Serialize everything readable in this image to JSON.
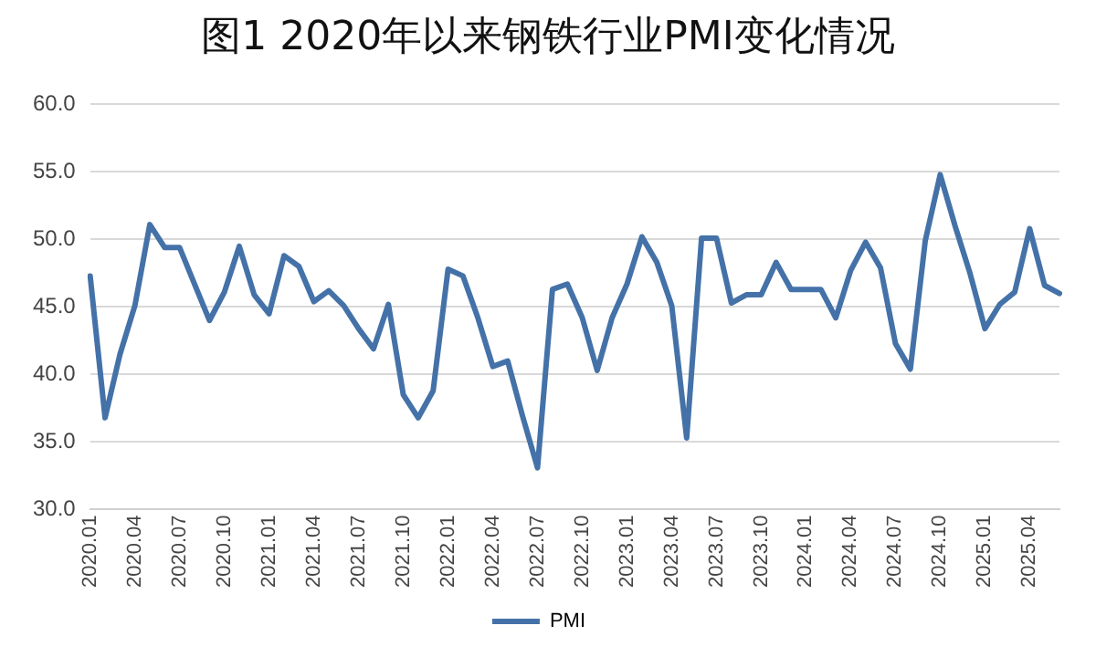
{
  "chart_data": {
    "type": "line",
    "title": "图1 2020年以来钢铁行业PMI变化情况",
    "categories": [
      "2020.01",
      null,
      null,
      "2020.04",
      null,
      null,
      "2020.07",
      null,
      null,
      "2020.10",
      null,
      null,
      "2021.01",
      null,
      null,
      "2021.04",
      null,
      null,
      "2021.07",
      null,
      null,
      "2021.10",
      null,
      null,
      "2022.01",
      null,
      null,
      "2022.04",
      null,
      null,
      "2022.07",
      null,
      null,
      "2022.10",
      null,
      null,
      "2023.01",
      null,
      null,
      "2023.04",
      null,
      null,
      "2023.07",
      null,
      null,
      "2023.10",
      null,
      null,
      "2024.01",
      null,
      null,
      "2024.04",
      null,
      null,
      "2024.07",
      null,
      null,
      "2024.10",
      null,
      null,
      "2025.01",
      null,
      null,
      "2025.04",
      null,
      null
    ],
    "series": [
      {
        "name": "PMI",
        "color": "#4472a8",
        "values": [
          47.3,
          36.8,
          41.5,
          45.1,
          51.1,
          49.4,
          49.4,
          46.7,
          44.0,
          46.1,
          49.5,
          45.9,
          44.5,
          48.8,
          48.0,
          45.4,
          46.2,
          45.1,
          43.4,
          41.9,
          45.2,
          38.5,
          36.8,
          38.8,
          47.8,
          47.3,
          44.2,
          40.6,
          41.0,
          36.9,
          33.1,
          46.3,
          46.7,
          44.2,
          40.3,
          44.2,
          46.7,
          50.2,
          48.3,
          45.1,
          35.3,
          50.1,
          50.1,
          45.3,
          45.9,
          45.9,
          48.3,
          46.3,
          46.3,
          46.3,
          44.2,
          47.7,
          49.8,
          47.9,
          42.3,
          40.4,
          49.9,
          54.8,
          51.0,
          47.5,
          43.4,
          45.2,
          46.1,
          50.8,
          46.6,
          46.0
        ]
      }
    ],
    "ylim": [
      30,
      60
    ],
    "yticks": [
      {
        "value": 30,
        "label": "30.0"
      },
      {
        "value": 35,
        "label": "35.0"
      },
      {
        "value": 40,
        "label": "40.0"
      },
      {
        "value": 45,
        "label": "45.0"
      },
      {
        "value": 50,
        "label": "50.0"
      },
      {
        "value": 55,
        "label": "55.0"
      },
      {
        "value": 60,
        "label": "60.0"
      }
    ],
    "grid": "y",
    "legend": "bottom",
    "marker": "none",
    "line_style": "solid"
  }
}
